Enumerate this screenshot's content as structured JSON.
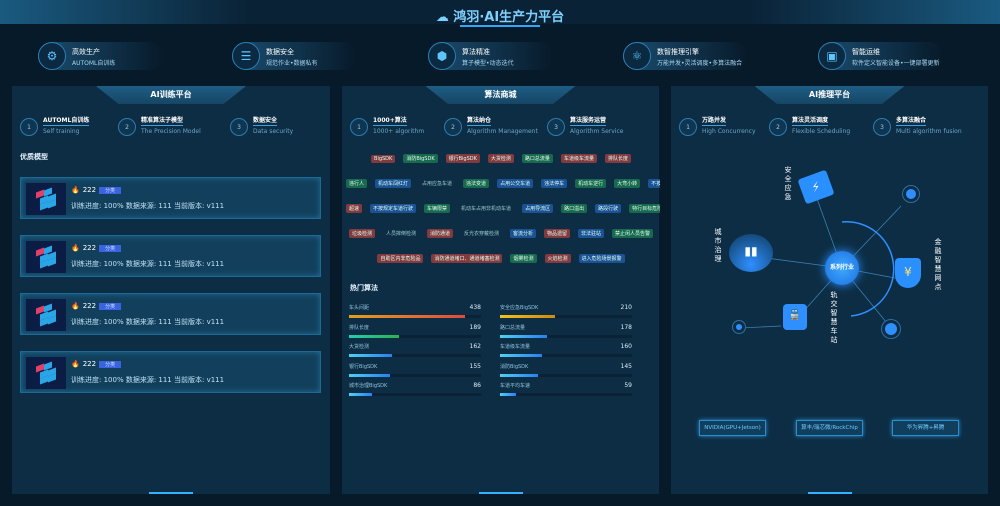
{
  "header": {
    "title": "鸿羽·AI生产力平台",
    "logo_icon": "cloud-icon"
  },
  "features": [
    {
      "title": "高效生产",
      "subtitle": "AUTOML自训练",
      "icon": "gears-icon"
    },
    {
      "title": "数据安全",
      "subtitle": "规范作业•数据私有",
      "icon": "database-icon"
    },
    {
      "title": "算法精准",
      "subtitle": "算子模型•动态迭代",
      "icon": "cube-icon"
    },
    {
      "title": "数智推理引擎",
      "subtitle": "万能并发•灵活调度•多算法融合",
      "icon": "atom-icon"
    },
    {
      "title": "智能运维",
      "subtitle": "软件定义智能设备•一键部署更新",
      "icon": "dashboard-icon"
    }
  ],
  "training": {
    "title": "AI训练平台",
    "steps": [
      {
        "n": "1",
        "cn": "AUTOML自训练",
        "en": "Self training"
      },
      {
        "n": "2",
        "cn": "精准算法子模型",
        "en": "The Precision Model"
      },
      {
        "n": "3",
        "cn": "数据安全",
        "en": "Data security"
      }
    ],
    "section": "优质模型",
    "models": [
      {
        "name": "222",
        "badge": "分类",
        "line": "训练进度: 100%   数据来源: 111   当前版本: v111"
      },
      {
        "name": "222",
        "badge": "分类",
        "line": "训练进度: 100%   数据来源: 111   当前版本: v111"
      },
      {
        "name": "222",
        "badge": "分类",
        "line": "训练进度: 100%   数据来源: 111   当前版本: v111"
      },
      {
        "name": "222",
        "badge": "分类",
        "line": "训练进度: 100%   数据来源: 111   当前版本: v111"
      }
    ]
  },
  "mall": {
    "title": "算法商城",
    "steps": [
      {
        "n": "1",
        "cn": "1000+算法",
        "en": "1000+ algorithm"
      },
      {
        "n": "2",
        "cn": "算法纳仓",
        "en": "Algorithm Management"
      },
      {
        "n": "3",
        "cn": "算法服务运营",
        "en": "Algorithm Service"
      }
    ],
    "tag_rows": [
      [
        [
          "BigSDK",
          "red"
        ],
        [
          "消防BigSDK",
          "green"
        ],
        [
          "银行BigSDK",
          "red"
        ],
        [
          "大货检测",
          "red"
        ],
        [
          "路口总流量",
          "green"
        ],
        [
          "车道级车流量",
          "red"
        ],
        [
          "排队长度",
          "red"
        ]
      ],
      [
        [
          "违行人",
          "green"
        ],
        [
          "机动车闯红灯",
          "blue"
        ],
        [
          "占用应急车道",
          "plain"
        ],
        [
          "违法变道",
          "green"
        ],
        [
          "占用公交车道",
          "blue"
        ],
        [
          "违法停车",
          "blue"
        ],
        [
          "机动车逆行",
          "green"
        ],
        [
          "大弯小转",
          "green"
        ],
        [
          "不按导向车道",
          "blue"
        ]
      ],
      [
        [
          "超速",
          "red"
        ],
        [
          "不按规定车道行驶",
          "blue"
        ],
        [
          "车辆限禁",
          "green"
        ],
        [
          "机动车占用非机动车道",
          "plain"
        ],
        [
          "占用导流区",
          "blue"
        ],
        [
          "路口溢出",
          "green"
        ],
        [
          "路段行驶",
          "blue"
        ],
        [
          "特行目标危险识别",
          "green"
        ]
      ],
      [
        [
          "垃圾检测",
          "red"
        ],
        [
          "人员摔倒检测",
          "plain"
        ],
        [
          "消防通道",
          "red"
        ],
        [
          "反光衣穿戴检测",
          "plain"
        ],
        [
          "客流分析",
          "blue"
        ],
        [
          "物品遗留",
          "red"
        ],
        [
          "非法驻站",
          "blue"
        ],
        [
          "禁止闲人员告警",
          "green"
        ]
      ],
      [
        [
          "自助区内非危险品",
          "red"
        ],
        [
          "消防通道堵口、通道堵塞检测",
          "red"
        ],
        [
          "烟雾检测",
          "green"
        ],
        [
          "火焰检测",
          "red"
        ],
        [
          "进入危险场景报警",
          "blue"
        ]
      ]
    ],
    "hot_title": "热门算法",
    "hot_max": 500,
    "hot": [
      {
        "name": "车头间距",
        "value": 438,
        "color": "#e0a020,#e04a40"
      },
      {
        "name": "安全应急BigSDK",
        "value": 210,
        "color": "#f0c020,#d08a10"
      },
      {
        "name": "排队长度",
        "value": 189,
        "color": "#20d0b0,#30b050"
      },
      {
        "name": "路口总流量",
        "value": 178,
        "color": "#50d0f0,#2a80f0"
      },
      {
        "name": "大货检测",
        "value": 162,
        "color": "#50d0f0,#2a80f0"
      },
      {
        "name": "车道级车流量",
        "value": 160,
        "color": "#50d0f0,#2a80f0"
      },
      {
        "name": "银行BigSDK",
        "value": 155,
        "color": "#50d0f0,#2a80f0"
      },
      {
        "name": "消防BigSDK",
        "value": 145,
        "color": "#50d0f0,#2a80f0"
      },
      {
        "name": "城市治理BigSDK",
        "value": 86,
        "color": "#50d0f0,#2a80f0"
      },
      {
        "name": "车道平均车速",
        "value": 59,
        "color": "#50d0f0,#2a80f0"
      }
    ]
  },
  "inference": {
    "title": "AI推理平台",
    "steps": [
      {
        "n": "1",
        "cn": "万路并发",
        "en": "High Concurrency"
      },
      {
        "n": "2",
        "cn": "算法灵活调度",
        "en": "Flexible Scheduling"
      },
      {
        "n": "3",
        "cn": "多算法融合",
        "en": "Multi algorithm fusion"
      }
    ],
    "hub": "系列行业",
    "industries": [
      "安全应急",
      "城市治理",
      "金融智慧网点",
      "轨交智慧车站"
    ],
    "chips": [
      "NVIDIA(GPU+Jetson)",
      "算丰/瑞芯微/RockChip",
      "华为昇腾+昇腾"
    ]
  }
}
